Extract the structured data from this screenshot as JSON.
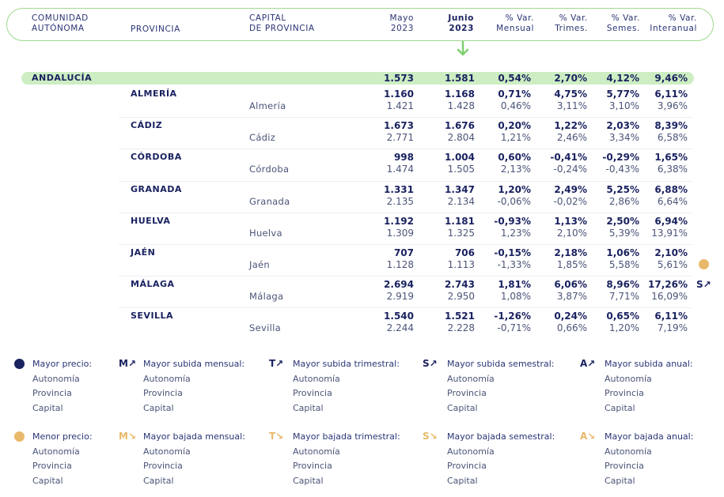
{
  "header": {
    "comunidad": [
      "COMUNIDAD",
      "AUTÓNOMA"
    ],
    "provincia": "PROVINCIA",
    "capital": [
      "CAPITAL",
      "DE PROVINCIA"
    ],
    "mayo": [
      "Mayo",
      "2023"
    ],
    "junio": [
      "Junio",
      "2023"
    ],
    "var_mensual": [
      "% Var.",
      "Mensual"
    ],
    "var_trimes": [
      "% Var.",
      "Trimes."
    ],
    "var_semes": [
      "% Var.",
      "Semes."
    ],
    "var_interanual": [
      "% Var.",
      "Interanual"
    ]
  },
  "region": {
    "name": "ANDALUCÍA",
    "values": [
      "1.573",
      "1.581",
      "0,54%",
      "2,70%",
      "4,12%",
      "9,46%"
    ]
  },
  "rows": [
    {
      "province": "ALMERÍA",
      "capital": "Almería",
      "prov_values": [
        "1.160",
        "1.168",
        "0,71%",
        "4,75%",
        "5,77%",
        "6,11%"
      ],
      "cap_values": [
        "1.421",
        "1.428",
        "0,46%",
        "3,11%",
        "3,10%",
        "3,96%"
      ]
    },
    {
      "province": "CÁDIZ",
      "capital": "Cádiz",
      "prov_values": [
        "1.673",
        "1.676",
        "0,20%",
        "1,22%",
        "2,03%",
        "8,39%"
      ],
      "cap_values": [
        "2.771",
        "2.804",
        "1,21%",
        "2,46%",
        "3,34%",
        "6,58%"
      ]
    },
    {
      "province": "CÓRDOBA",
      "capital": "Córdoba",
      "prov_values": [
        "998",
        "1.004",
        "0,60%",
        "-0,41%",
        "-0,29%",
        "1,65%"
      ],
      "cap_values": [
        "1.474",
        "1.505",
        "2,13%",
        "-0,24%",
        "-0,43%",
        "6,38%"
      ]
    },
    {
      "province": "GRANADA",
      "capital": "Granada",
      "prov_values": [
        "1.331",
        "1.347",
        "1,20%",
        "2,49%",
        "5,25%",
        "6,88%"
      ],
      "cap_values": [
        "2.135",
        "2.134",
        "-0,06%",
        "-0,02%",
        "2,86%",
        "6,64%"
      ]
    },
    {
      "province": "HUELVA",
      "capital": "Huelva",
      "prov_values": [
        "1.192",
        "1.181",
        "-0,93%",
        "1,13%",
        "2,50%",
        "6,94%"
      ],
      "cap_values": [
        "1.309",
        "1.325",
        "1,23%",
        "2,10%",
        "5,39%",
        "13,91%"
      ]
    },
    {
      "province": "JAÉN",
      "capital": "Jaén",
      "prov_values": [
        "707",
        "706",
        "-0,15%",
        "2,18%",
        "1,06%",
        "2,10%"
      ],
      "cap_values": [
        "1.128",
        "1.113",
        "-1,33%",
        "1,85%",
        "5,58%",
        "5,61%"
      ]
    },
    {
      "province": "MÁLAGA",
      "capital": "Málaga",
      "prov_values": [
        "2.694",
        "2.743",
        "1,81%",
        "6,06%",
        "8,96%",
        "17,26%"
      ],
      "cap_values": [
        "2.919",
        "2.950",
        "1,08%",
        "3,87%",
        "7,71%",
        "16,09%"
      ]
    },
    {
      "province": "SEVILLA",
      "capital": "Sevilla",
      "prov_values": [
        "1.540",
        "1.521",
        "-1,26%",
        "0,24%",
        "0,65%",
        "6,11%"
      ],
      "cap_values": [
        "2.244",
        "2.228",
        "-0,71%",
        "0,66%",
        "1,20%",
        "7,19%"
      ]
    }
  ],
  "side_markers": {
    "jaen_dot_color": "#e8b96a",
    "malaga_symbol": "S↗"
  },
  "legend": {
    "top": [
      {
        "symbol": "",
        "title": "Mayor precio:",
        "items": [
          "Autonomía",
          "Provincia",
          "Capital"
        ]
      },
      {
        "symbol": "M↗",
        "title": "Mayor subida mensual:",
        "items": [
          "Autonomía",
          "Provincia",
          "Capital"
        ]
      },
      {
        "symbol": "T↗",
        "title": "Mayor subida trimestral:",
        "items": [
          "Autonomía",
          "Provincia",
          "Capital"
        ]
      },
      {
        "symbol": "S↗",
        "title": "Mayor subida semestral:",
        "items": [
          "Autonomía",
          "Provincia",
          "Capital"
        ]
      },
      {
        "symbol": "A↗",
        "title": "Mayor subida anual:",
        "items": [
          "Autonomía",
          "Provincia",
          "Capital"
        ]
      }
    ],
    "bottom": [
      {
        "symbol": "",
        "title": "Menor precio:",
        "items": [
          "Autonomía",
          "Provincia",
          "Capital"
        ]
      },
      {
        "symbol": "M↘",
        "title": "Mayor bajada mensual:",
        "items": [
          "Autonomía",
          "Provincia",
          "Capital"
        ]
      },
      {
        "symbol": "T↘",
        "title": "Mayor bajada trimestral:",
        "items": [
          "Autonomía",
          "Provincia",
          "Capital"
        ]
      },
      {
        "symbol": "S↘",
        "title": "Mayor bajada semestral:",
        "items": [
          "Autonomía",
          "Provincia",
          "Capital"
        ]
      },
      {
        "symbol": "A↘",
        "title": "Mayor bajada anual:",
        "items": [
          "Autonomía",
          "Provincia",
          "Capital"
        ]
      }
    ]
  },
  "colors": {
    "navy": "#1a2260",
    "gold": "#e8b96a",
    "green": "#9fd98f",
    "band": "#cdeec3"
  }
}
